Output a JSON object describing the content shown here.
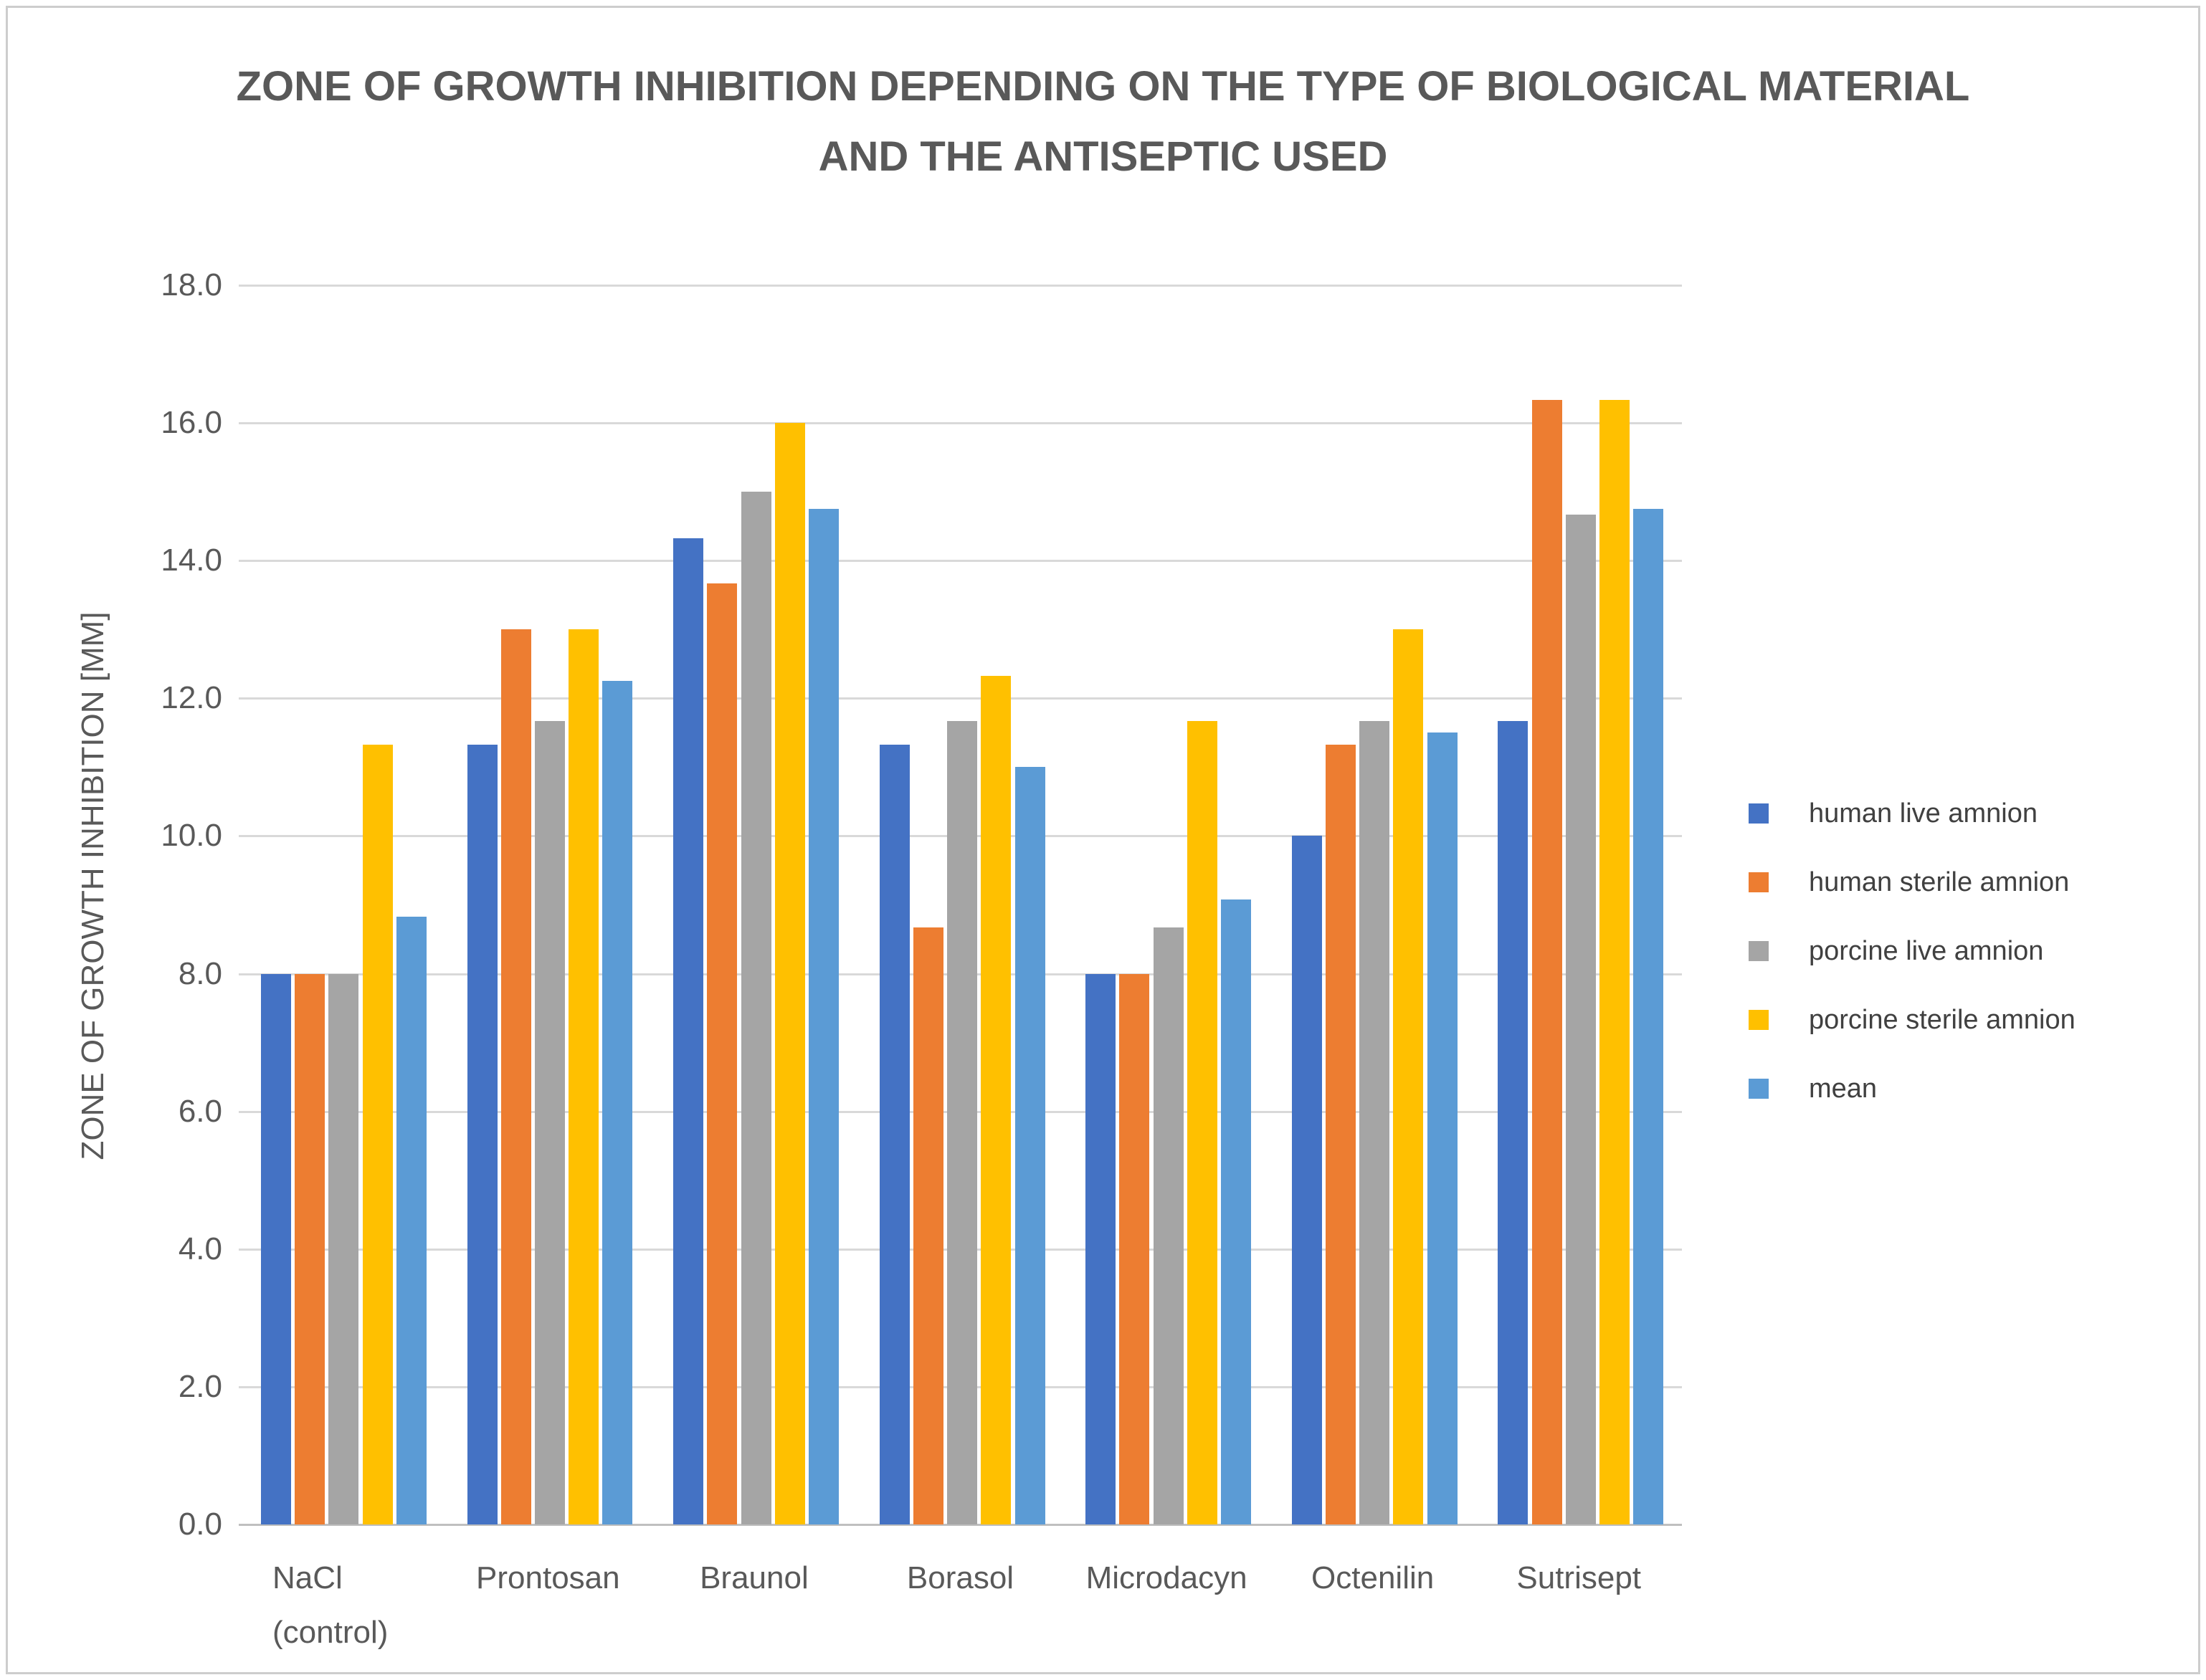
{
  "title": {
    "line1": "ZONE OF GROWTH INHIBITION DEPENDING ON THE TYPE OF BIOLOGICAL MATERIAL",
    "line2": "AND THE ANTISEPTIC USED"
  },
  "axes": {
    "y_title": "ZONE OF GROWTH INHIBITION [MM]",
    "y_tick_labels": [
      "0.0",
      "2.0",
      "4.0",
      "6.0",
      "8.0",
      "10.0",
      "12.0",
      "14.0",
      "16.0",
      "18.0"
    ],
    "y_min": 0,
    "y_max": 18,
    "y_tick_step": 2
  },
  "colors": {
    "gridline": "#d9d9d9",
    "axis_line": "#bfbfbf",
    "title_text": "#595959",
    "axis_text": "#595959",
    "legend_text": "#404040",
    "frame_border": "#cdcdcd",
    "background": "#ffffff"
  },
  "chart_data": {
    "type": "bar",
    "title": "ZONE OF GROWTH INHIBITION DEPENDING ON THE TYPE OF BIOLOGICAL MATERIAL AND THE ANTISEPTIC USED",
    "ylabel": "ZONE OF GROWTH INHIBITION [MM]",
    "xlabel": "",
    "ylim": [
      0,
      18
    ],
    "grid": true,
    "legend_position": "right",
    "categories": [
      "NaCl (control)",
      "Prontosan",
      "Braunol",
      "Borasol",
      "Microdacyn",
      "Octenilin",
      "Sutrisept"
    ],
    "category_lines": [
      [
        "NaCl",
        "(control)"
      ],
      [
        "Prontosan"
      ],
      [
        "Braunol"
      ],
      [
        "Borasol"
      ],
      [
        "Microdacyn"
      ],
      [
        "Octenilin"
      ],
      [
        "Sutrisept"
      ]
    ],
    "series": [
      {
        "name": "human live amnion",
        "color": "#4472c4",
        "values": [
          8.0,
          11.33,
          14.33,
          11.33,
          8.0,
          10.0,
          11.67
        ]
      },
      {
        "name": "human sterile amnion",
        "color": "#ed7d31",
        "values": [
          8.0,
          13.0,
          13.67,
          8.67,
          8.0,
          11.33,
          16.33
        ]
      },
      {
        "name": "porcine live amnion",
        "color": "#a5a5a5",
        "values": [
          8.0,
          11.67,
          15.0,
          11.67,
          8.67,
          11.67,
          14.67
        ]
      },
      {
        "name": "porcine sterile amnion",
        "color": "#ffc000",
        "values": [
          11.33,
          13.0,
          16.0,
          12.33,
          11.67,
          13.0,
          16.33
        ]
      },
      {
        "name": "mean",
        "color": "#5b9bd5",
        "values": [
          8.83,
          12.25,
          14.75,
          11.0,
          9.08,
          11.5,
          14.75
        ]
      }
    ]
  }
}
